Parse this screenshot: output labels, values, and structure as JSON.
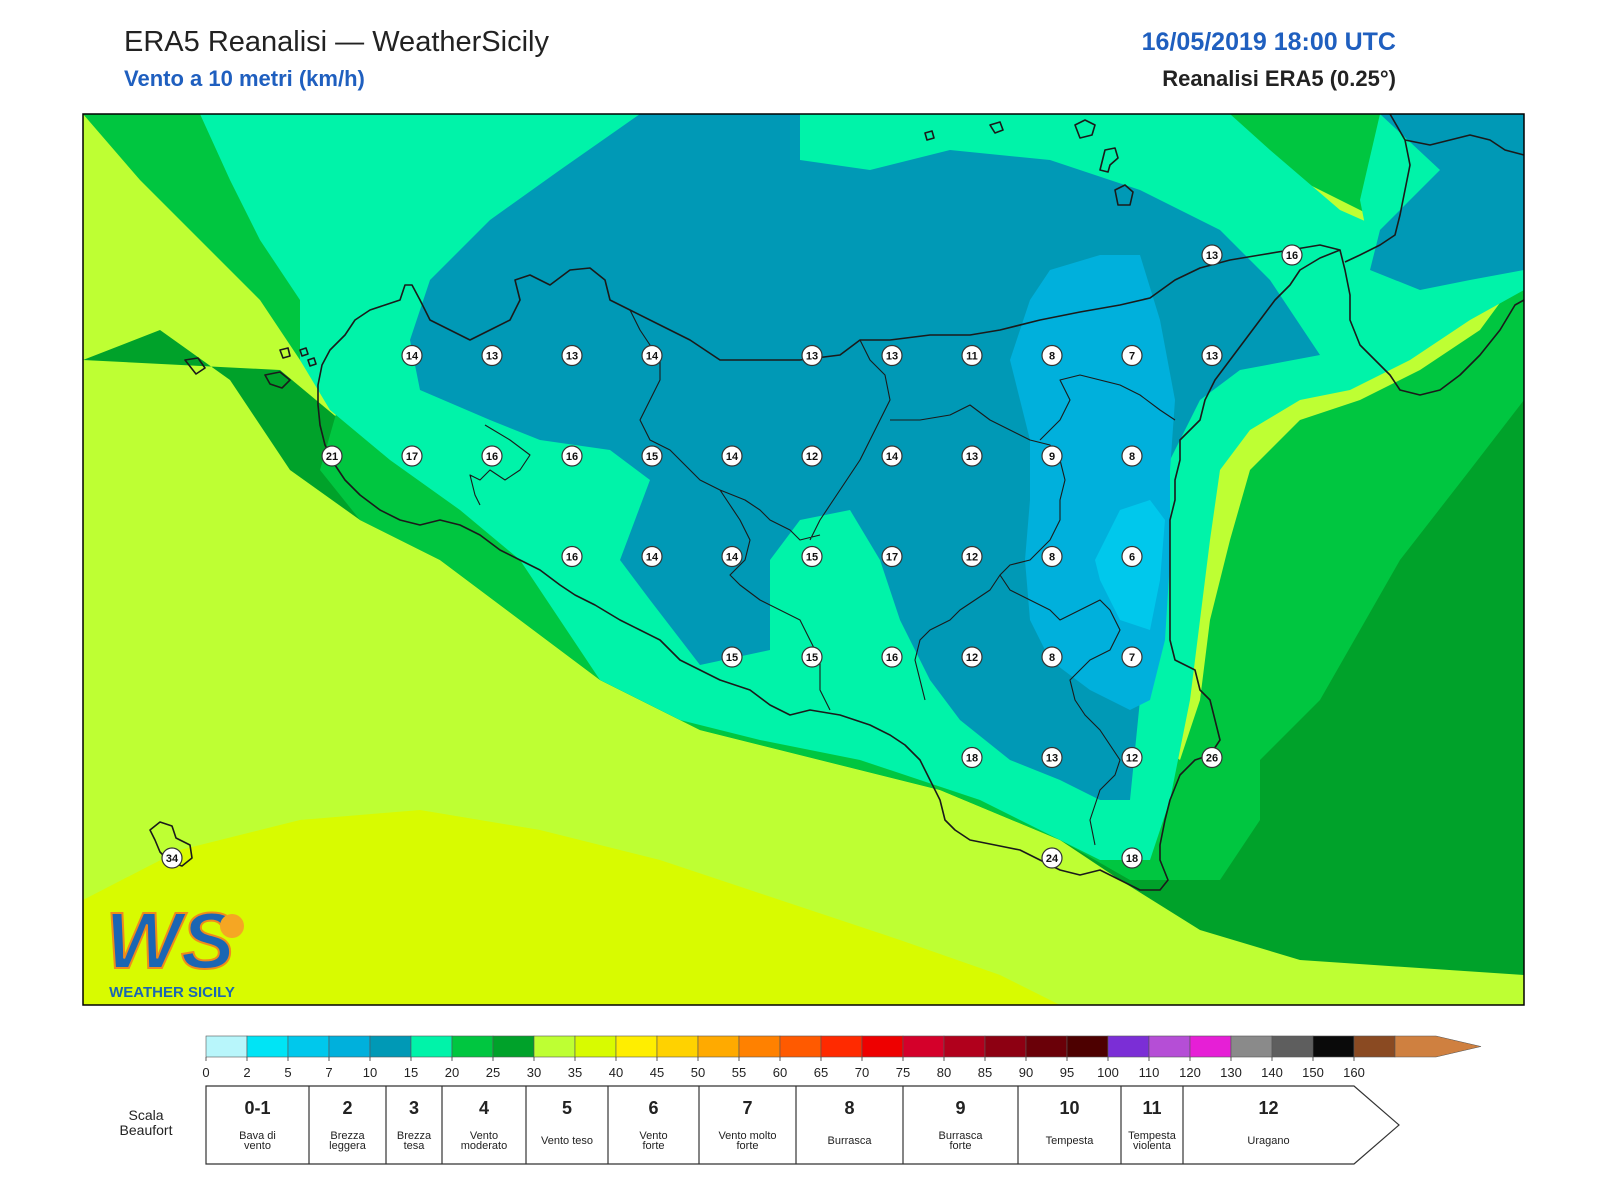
{
  "header": {
    "title": "ERA5 Reanalisi — WeatherSicily",
    "subtitle": "Vento a 10 metri (km/h)",
    "datetime": "16/05/2019 18:00 UTC",
    "dataset": "Reanalisi ERA5 (0.25°)"
  },
  "logo": {
    "letters": "WS",
    "text": "WEATHER SICILY"
  },
  "colors": {
    "frame": "#000000",
    "coast": "#1a1a1a",
    "bands": [
      "#b8f6fb",
      "#00e4f5",
      "#00c8ec",
      "#00b0dc",
      "#0099b6",
      "#00f3a9",
      "#00c640",
      "#00a22a",
      "#beff33",
      "#d8fb00",
      "#ffee00",
      "#ffd200",
      "#ffaa00",
      "#ff8100",
      "#ff5a00",
      "#ff2a00",
      "#ee0000",
      "#d4002a",
      "#b1001c",
      "#8d0012",
      "#6a0008",
      "#4d0000",
      "#7b2ed6",
      "#b54ed6",
      "#e61fd6",
      "#8a8a8a",
      "#5e5e5e",
      "#0a0a0a",
      "#8a4a22",
      "#cf8040"
    ]
  },
  "colorbar": {
    "ticks": [
      "0",
      "2",
      "5",
      "7",
      "10",
      "15",
      "20",
      "25",
      "30",
      "35",
      "40",
      "45",
      "50",
      "55",
      "60",
      "65",
      "70",
      "75",
      "80",
      "85",
      "90",
      "95",
      "100",
      "110",
      "120",
      "130",
      "140",
      "150",
      "160"
    ]
  },
  "beaufort": {
    "title": [
      "Scala",
      "Beaufort"
    ],
    "cells": [
      {
        "num": "0-1",
        "desc": [
          "Bava di",
          "vento"
        ]
      },
      {
        "num": "2",
        "desc": [
          "Brezza",
          "leggera"
        ]
      },
      {
        "num": "3",
        "desc": [
          "Brezza",
          "tesa"
        ]
      },
      {
        "num": "4",
        "desc": [
          "Vento",
          "moderato"
        ]
      },
      {
        "num": "5",
        "desc": [
          "Vento teso"
        ]
      },
      {
        "num": "6",
        "desc": [
          "Vento",
          "forte"
        ]
      },
      {
        "num": "7",
        "desc": [
          "Vento molto",
          "forte"
        ]
      },
      {
        "num": "8",
        "desc": [
          "Burrasca"
        ]
      },
      {
        "num": "9",
        "desc": [
          "Burrasca",
          "forte"
        ]
      },
      {
        "num": "10",
        "desc": [
          "Tempesta"
        ]
      },
      {
        "num": "11",
        "desc": [
          "Tempesta",
          "violenta"
        ]
      },
      {
        "num": "12",
        "desc": [
          "Uragano"
        ]
      }
    ]
  },
  "stations": [
    {
      "row": 0,
      "col": 14,
      "v": "13"
    },
    {
      "row": 0,
      "col": 15,
      "v": "16"
    },
    {
      "row": 1,
      "col": 4,
      "v": "14"
    },
    {
      "row": 1,
      "col": 5,
      "v": "13"
    },
    {
      "row": 1,
      "col": 6,
      "v": "13"
    },
    {
      "row": 1,
      "col": 7,
      "v": "14"
    },
    {
      "row": 1,
      "col": 9,
      "v": "13"
    },
    {
      "row": 1,
      "col": 10,
      "v": "13"
    },
    {
      "row": 1,
      "col": 11,
      "v": "11"
    },
    {
      "row": 1,
      "col": 12,
      "v": "8"
    },
    {
      "row": 1,
      "col": 13,
      "v": "7"
    },
    {
      "row": 1,
      "col": 14,
      "v": "13"
    },
    {
      "row": 2,
      "col": 3,
      "v": "21"
    },
    {
      "row": 2,
      "col": 4,
      "v": "17"
    },
    {
      "row": 2,
      "col": 5,
      "v": "16"
    },
    {
      "row": 2,
      "col": 6,
      "v": "16"
    },
    {
      "row": 2,
      "col": 7,
      "v": "15"
    },
    {
      "row": 2,
      "col": 8,
      "v": "14"
    },
    {
      "row": 2,
      "col": 9,
      "v": "12"
    },
    {
      "row": 2,
      "col": 10,
      "v": "14"
    },
    {
      "row": 2,
      "col": 11,
      "v": "13"
    },
    {
      "row": 2,
      "col": 12,
      "v": "9"
    },
    {
      "row": 2,
      "col": 13,
      "v": "8"
    },
    {
      "row": 3,
      "col": 6,
      "v": "16"
    },
    {
      "row": 3,
      "col": 7,
      "v": "14"
    },
    {
      "row": 3,
      "col": 8,
      "v": "14"
    },
    {
      "row": 3,
      "col": 9,
      "v": "15"
    },
    {
      "row": 3,
      "col": 10,
      "v": "17"
    },
    {
      "row": 3,
      "col": 11,
      "v": "12"
    },
    {
      "row": 3,
      "col": 12,
      "v": "8"
    },
    {
      "row": 3,
      "col": 13,
      "v": "6"
    },
    {
      "row": 4,
      "col": 8,
      "v": "15"
    },
    {
      "row": 4,
      "col": 9,
      "v": "15"
    },
    {
      "row": 4,
      "col": 10,
      "v": "16"
    },
    {
      "row": 4,
      "col": 11,
      "v": "12"
    },
    {
      "row": 4,
      "col": 12,
      "v": "8"
    },
    {
      "row": 4,
      "col": 13,
      "v": "7"
    },
    {
      "row": 5,
      "col": 11,
      "v": "18"
    },
    {
      "row": 5,
      "col": 12,
      "v": "13"
    },
    {
      "row": 5,
      "col": 13,
      "v": "12"
    },
    {
      "row": 5,
      "col": 14,
      "v": "26"
    },
    {
      "row": 6,
      "col": 1,
      "v": "34"
    },
    {
      "row": 6,
      "col": 12,
      "v": "24"
    },
    {
      "row": 6,
      "col": 13,
      "v": "18"
    }
  ]
}
